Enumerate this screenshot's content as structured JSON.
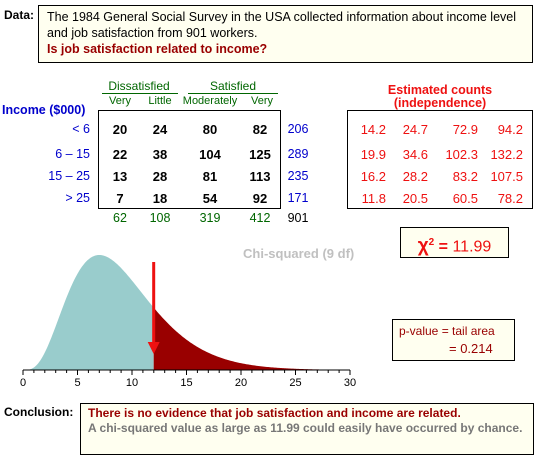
{
  "data_label": "Data:",
  "data_text": "The 1984 General Social Survey in the USA collected information about income level and job satisfaction from 901 workers.",
  "question": "Is job satisfaction related to income?",
  "table": {
    "row_header": "Income ($000)",
    "group_dissatisfied": "Dissatisfied",
    "group_satisfied": "Satisfied",
    "columns": [
      "Very",
      "Little",
      "Moderately",
      "Very"
    ],
    "rows": [
      {
        "label": "< 6",
        "values": [
          20,
          24,
          80,
          82
        ],
        "total": 206
      },
      {
        "label": "6 – 15",
        "values": [
          22,
          38,
          104,
          125
        ],
        "total": 289
      },
      {
        "label": "15 – 25",
        "values": [
          13,
          28,
          81,
          113
        ],
        "total": 235
      },
      {
        "label": "> 25",
        "values": [
          7,
          18,
          54,
          92
        ],
        "total": 171
      }
    ],
    "col_totals": [
      62,
      108,
      319,
      412
    ],
    "grand_total": 901
  },
  "estimated": {
    "title_line1": "Estimated counts",
    "title_line2": "(independence)",
    "rows": [
      [
        "14.2",
        "24.7",
        "72.9",
        "94.2"
      ],
      [
        "19.9",
        "34.6",
        "102.3",
        "132.2"
      ],
      [
        "16.2",
        "28.2",
        "83.2",
        "107.5"
      ],
      [
        "11.8",
        "20.5",
        "60.5",
        "78.2"
      ]
    ]
  },
  "chi_squared": {
    "symbol": "χ",
    "sup": "2",
    "equals": "=",
    "value": "11.99"
  },
  "chart_title": "Chi-squared (9 df)",
  "pvalue": {
    "line1": "p-value  =  tail area",
    "line2": "=  0.214"
  },
  "axis": {
    "ticks": [
      0,
      5,
      10,
      15,
      20,
      25,
      30
    ],
    "xlim": [
      0,
      30
    ],
    "df": 9,
    "observed": 11.99
  },
  "colors": {
    "body_fill": "#99cccc",
    "tail_fill": "#990000",
    "arrow": "#ee1111",
    "box_bg": "#fffff0"
  },
  "conclusion_label": "Conclusion:",
  "conclusion_main": "There is no evidence that job satisfaction and income are related.",
  "conclusion_detail": "A chi-squared value as large as 11.99 could easily have occurred by chance."
}
